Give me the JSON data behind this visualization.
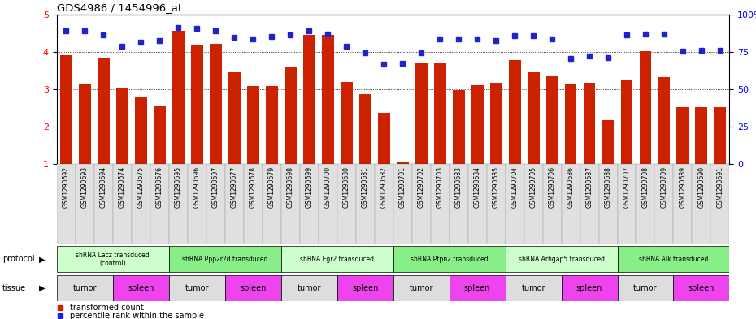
{
  "title": "GDS4986 / 1454996_at",
  "samples": [
    "GSM1290692",
    "GSM1290693",
    "GSM1290694",
    "GSM1290674",
    "GSM1290675",
    "GSM1290676",
    "GSM1290695",
    "GSM1290696",
    "GSM1290697",
    "GSM1290677",
    "GSM1290678",
    "GSM1290679",
    "GSM1290698",
    "GSM1290699",
    "GSM1290700",
    "GSM1290680",
    "GSM1290681",
    "GSM1290682",
    "GSM1290701",
    "GSM1290702",
    "GSM1290703",
    "GSM1290683",
    "GSM1290684",
    "GSM1290685",
    "GSM1290704",
    "GSM1290705",
    "GSM1290706",
    "GSM1290686",
    "GSM1290687",
    "GSM1290688",
    "GSM1290707",
    "GSM1290708",
    "GSM1290709",
    "GSM1290689",
    "GSM1290690",
    "GSM1290691"
  ],
  "bar_values": [
    3.9,
    3.15,
    3.85,
    3.02,
    2.78,
    2.55,
    4.55,
    4.2,
    4.22,
    3.46,
    3.08,
    3.08,
    3.6,
    4.45,
    4.45,
    3.2,
    2.88,
    2.38,
    1.08,
    3.72,
    3.7,
    2.98,
    3.1,
    3.18,
    3.78,
    3.45,
    3.35,
    3.15,
    3.18,
    2.18,
    3.25,
    4.02,
    3.32,
    2.52,
    2.52,
    2.52
  ],
  "percentile_values": [
    4.55,
    4.55,
    4.45,
    4.15,
    4.25,
    4.3,
    4.65,
    4.62,
    4.55,
    4.38,
    4.35,
    4.4,
    4.45,
    4.55,
    4.48,
    4.15,
    3.98,
    3.68,
    3.7,
    3.98,
    4.35,
    4.35,
    4.35,
    4.3,
    4.42,
    4.42,
    4.35,
    3.82,
    3.88,
    3.85,
    4.45,
    4.48,
    4.48,
    4.02,
    4.05,
    4.05
  ],
  "ylim_left": [
    1,
    5
  ],
  "bar_color": "#CC2200",
  "dot_color": "#2222CC",
  "protocols": [
    {
      "label": "shRNA Lacz transduced\n(control)",
      "start": 0,
      "end": 6,
      "color": "#ccffcc"
    },
    {
      "label": "shRNA Ppp2r2d transduced",
      "start": 6,
      "end": 12,
      "color": "#88ee88"
    },
    {
      "label": "shRNA Egr2 transduced",
      "start": 12,
      "end": 18,
      "color": "#ccffcc"
    },
    {
      "label": "shRNA Ptpn2 transduced",
      "start": 18,
      "end": 24,
      "color": "#88ee88"
    },
    {
      "label": "shRNA Arhgap5 transduced",
      "start": 24,
      "end": 30,
      "color": "#ccffcc"
    },
    {
      "label": "shRNA Alk transduced",
      "start": 30,
      "end": 36,
      "color": "#88ee88"
    }
  ],
  "tissues": [
    {
      "label": "tumor",
      "start": 0,
      "end": 3,
      "color": "#dddddd"
    },
    {
      "label": "spleen",
      "start": 3,
      "end": 6,
      "color": "#ee44ee"
    },
    {
      "label": "tumor",
      "start": 6,
      "end": 9,
      "color": "#dddddd"
    },
    {
      "label": "spleen",
      "start": 9,
      "end": 12,
      "color": "#ee44ee"
    },
    {
      "label": "tumor",
      "start": 12,
      "end": 15,
      "color": "#dddddd"
    },
    {
      "label": "spleen",
      "start": 15,
      "end": 18,
      "color": "#ee44ee"
    },
    {
      "label": "tumor",
      "start": 18,
      "end": 21,
      "color": "#dddddd"
    },
    {
      "label": "spleen",
      "start": 21,
      "end": 24,
      "color": "#ee44ee"
    },
    {
      "label": "tumor",
      "start": 24,
      "end": 27,
      "color": "#dddddd"
    },
    {
      "label": "spleen",
      "start": 27,
      "end": 30,
      "color": "#ee44ee"
    },
    {
      "label": "tumor",
      "start": 30,
      "end": 33,
      "color": "#dddddd"
    },
    {
      "label": "spleen",
      "start": 33,
      "end": 36,
      "color": "#ee44ee"
    }
  ],
  "legend_items": [
    {
      "color": "#CC2200",
      "label": "transformed count"
    },
    {
      "color": "#2222CC",
      "label": "percentile rank within the sample"
    }
  ],
  "ytick_labels_right": [
    "0",
    "25",
    "50",
    "75",
    "100%"
  ],
  "label_font": 7,
  "tick_font": 7
}
